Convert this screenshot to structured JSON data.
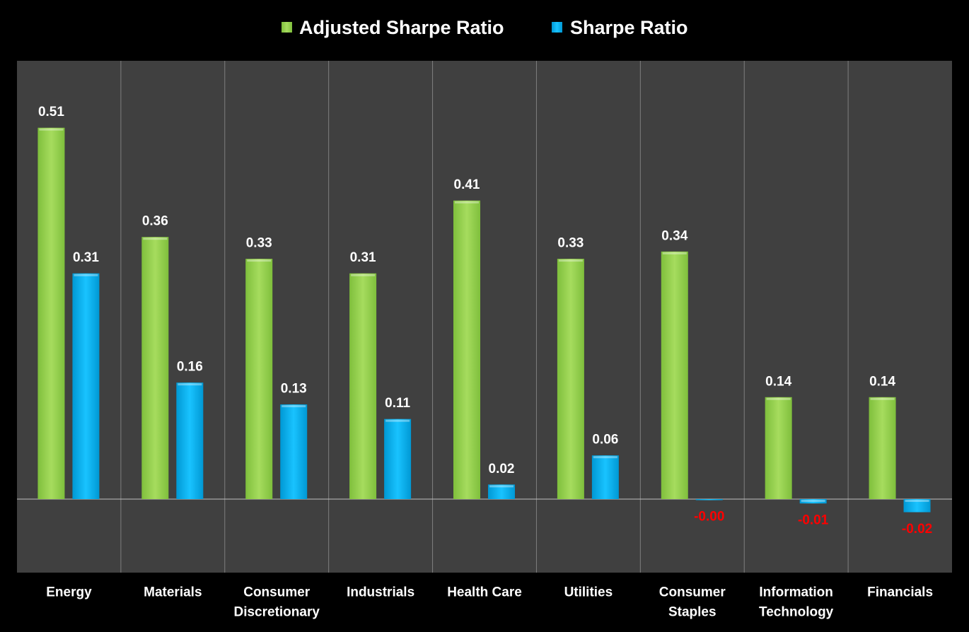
{
  "chart_data": {
    "type": "bar",
    "title": "",
    "xlabel": "",
    "ylabel": "",
    "ylim": [
      -0.1,
      0.6
    ],
    "grid": "vertical category separators",
    "legend_position": "top-center",
    "categories": [
      [
        "Energy"
      ],
      [
        "Materials"
      ],
      [
        "Consumer",
        "Discretionary"
      ],
      [
        "Industrials"
      ],
      [
        "Health Care"
      ],
      [
        "Utilities"
      ],
      [
        "Consumer",
        "Staples"
      ],
      [
        "Information",
        "Technology"
      ],
      [
        "Financials"
      ]
    ],
    "series": [
      {
        "name": "Adjusted Sharpe Ratio",
        "color": "#92d050",
        "values": [
          0.51,
          0.36,
          0.33,
          0.31,
          0.41,
          0.33,
          0.34,
          0.14,
          0.14
        ],
        "labels": [
          "0.51",
          "0.36",
          "0.33",
          "0.31",
          "0.41",
          "0.33",
          "0.34",
          "0.14",
          "0.14"
        ]
      },
      {
        "name": "Sharpe Ratio",
        "color": "#00b0f0",
        "values": [
          0.31,
          0.16,
          0.13,
          0.11,
          0.02,
          0.06,
          -0.001,
          -0.006,
          -0.018
        ],
        "labels": [
          "0.31",
          "0.16",
          "0.13",
          "0.11",
          "0.02",
          "0.06",
          "-0.00",
          "-0.01",
          "-0.02"
        ]
      }
    ],
    "colors": {
      "background": "#000000",
      "plot_area": "#404040",
      "separator": "#7f7f7f",
      "text": "#ffffff",
      "negative_label": "#ff0000"
    }
  }
}
